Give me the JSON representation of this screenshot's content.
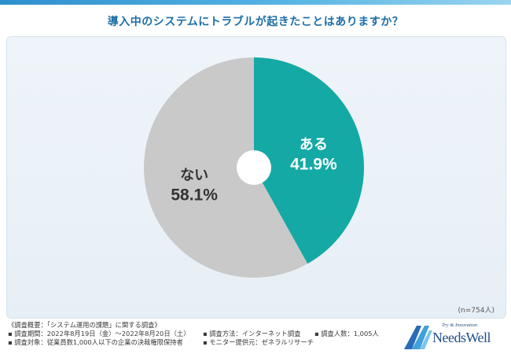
{
  "header": {
    "title": "導入中のシステムにトラブルが起きたことはありますか？"
  },
  "chart_data": {
    "type": "pie",
    "title": "導入中のシステムにトラブルが起きたことはありますか？",
    "donut_hole": true,
    "start_angle_deg": 0,
    "direction": "clockwise",
    "slices": [
      {
        "label": "ある",
        "value": 41.9,
        "value_text": "41.9%",
        "color": "#14a9a4",
        "label_color": "#ffffff"
      },
      {
        "label": "ない",
        "value": 58.1,
        "value_text": "58.1%",
        "color": "#c9c9c9",
        "label_color": "#333333"
      }
    ],
    "sample_size": "(n=754人)"
  },
  "footer": {
    "survey_summary": "《調査概要：「システム運用の課題」に関する調査》",
    "period": "▪ 調査期間：2022年8月19日（金）〜2022年8月20日（土）",
    "method": "▪ 調査方法：インターネット調査",
    "respondents": "▪ 調査人数：1,005人",
    "target": "▪ 調査対象：従業員数1,000人以下の企業の決裁権限保持者",
    "monitor": "▪ モニター提供元：ゼネラルリサーチ"
  },
  "logo": {
    "tagline": "Try & Innovation",
    "name": "NeedsWell"
  },
  "colors": {
    "accent": "#1d6ea6",
    "ari": "#14a9a4",
    "nai": "#c9c9c9"
  }
}
